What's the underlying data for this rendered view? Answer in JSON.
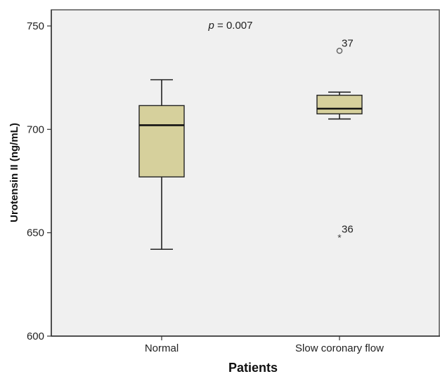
{
  "chart_data": {
    "type": "box",
    "title": "",
    "xlabel": "Patients",
    "ylabel": "Urotensin II (ng/mL)",
    "ylim": [
      600,
      755
    ],
    "yticks": [
      600,
      650,
      700,
      750
    ],
    "grid": false,
    "categories": [
      "Normal",
      "Slow coronary flow"
    ],
    "boxes": [
      {
        "category": "Normal",
        "whisker_low": 642,
        "q1": 677,
        "median": 702,
        "q3": 711.5,
        "whisker_high": 724
      },
      {
        "category": "Slow coronary flow",
        "whisker_low": 705,
        "q1": 707.5,
        "median": 710,
        "q3": 716.5,
        "whisker_high": 718
      }
    ],
    "outliers": [
      {
        "category": "Slow coronary flow",
        "value": 738,
        "label": "37",
        "marker": "circle"
      },
      {
        "category": "Slow coronary flow",
        "value": 648,
        "label": "36",
        "marker": "asterisk"
      }
    ],
    "annotation": {
      "prefix": "p",
      "text": " = 0.007"
    },
    "colors": {
      "box_fill": "#d6d09c",
      "plot_bg": "#f0f0f0",
      "line": "#222222"
    }
  }
}
